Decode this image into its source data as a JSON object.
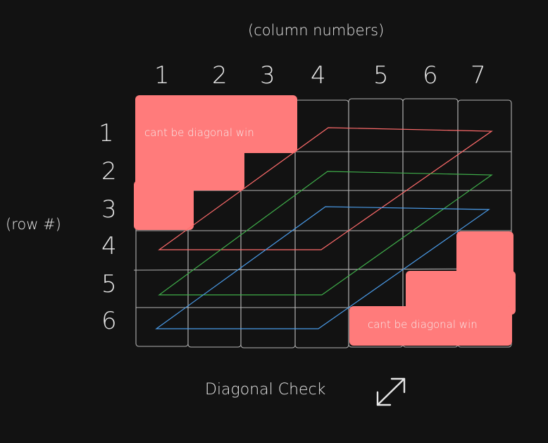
{
  "header": {
    "columns_caption": "(column numbers)"
  },
  "rows_caption": "(row #)",
  "columns": [
    "1",
    "2",
    "3",
    "4",
    "5",
    "6",
    "7"
  ],
  "rows": [
    "1",
    "2",
    "3",
    "4",
    "5",
    "6"
  ],
  "regions": {
    "top_left_note": "cant be diagonal win",
    "bottom_right_note": "cant be diagonal win",
    "fill_color": "#ff7b7b"
  },
  "diagonal_lines": [
    {
      "name": "red-diagonal",
      "color": "#ff6b6b"
    },
    {
      "name": "green-diagonal",
      "color": "#3fae4a"
    },
    {
      "name": "blue-diagonal",
      "color": "#4a9be8"
    }
  ],
  "footer": {
    "title": "Diagonal Check",
    "icon": "diagonal-double-arrow-icon"
  },
  "colors": {
    "background": "#121212",
    "grid": "#cfcfcf",
    "text": "#e6e6e6"
  }
}
